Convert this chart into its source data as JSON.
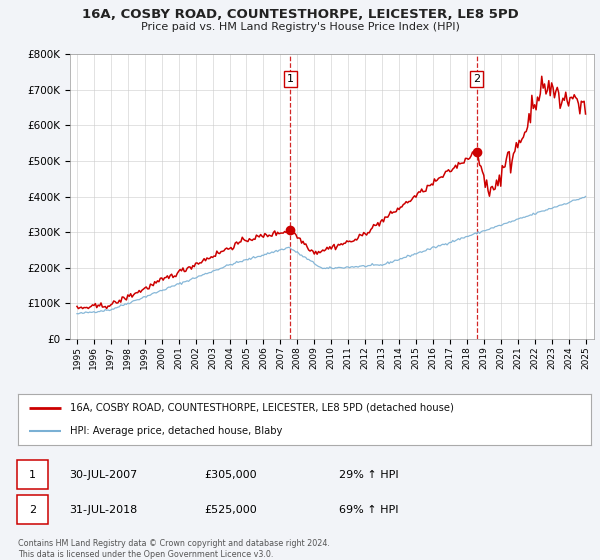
{
  "title": "16A, COSBY ROAD, COUNTESTHORPE, LEICESTER, LE8 5PD",
  "subtitle": "Price paid vs. HM Land Registry's House Price Index (HPI)",
  "background_color": "#f2f4f8",
  "plot_bg_color": "#ffffff",
  "ylim": [
    0,
    800000
  ],
  "yticks": [
    0,
    100000,
    200000,
    300000,
    400000,
    500000,
    600000,
    700000,
    800000
  ],
  "ytick_labels": [
    "£0",
    "£100K",
    "£200K",
    "£300K",
    "£400K",
    "£500K",
    "£600K",
    "£700K",
    "£800K"
  ],
  "sale1_date": 2007.58,
  "sale1_price": 305000,
  "sale1_label": "1",
  "sale1_date_str": "30-JUL-2007",
  "sale1_price_str": "£305,000",
  "sale1_hpi_str": "29% ↑ HPI",
  "sale2_date": 2018.58,
  "sale2_price": 525000,
  "sale2_label": "2",
  "sale2_date_str": "31-JUL-2018",
  "sale2_price_str": "£525,000",
  "sale2_hpi_str": "69% ↑ HPI",
  "red_color": "#cc0000",
  "blue_color": "#7ab0d4",
  "legend_label1": "16A, COSBY ROAD, COUNTESTHORPE, LEICESTER, LE8 5PD (detached house)",
  "legend_label2": "HPI: Average price, detached house, Blaby",
  "footer1": "Contains HM Land Registry data © Crown copyright and database right 2024.",
  "footer2": "This data is licensed under the Open Government Licence v3.0."
}
